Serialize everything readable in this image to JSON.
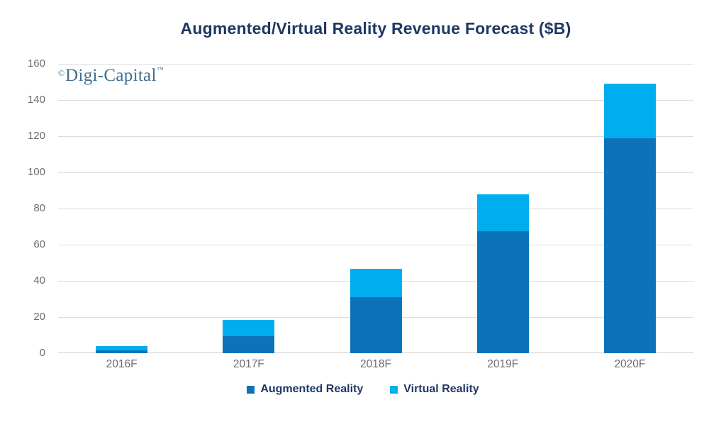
{
  "logo": {
    "copyright_symbol": "©",
    "text": "Digi-Capital",
    "trademark_symbol": "™"
  },
  "colors": {
    "navy_text": "#1f3864",
    "tick_label": "#6f6b6b",
    "gridline": "#dcdcdc",
    "axis_line": "#cfcfcf",
    "logo_text": "#3f7093",
    "augmented_reality_bar": "#0d73b9",
    "virtual_reality_bar": "#00aeef"
  },
  "chart_data": {
    "type": "bar",
    "stacked": true,
    "title": "Augmented/Virtual Reality Revenue Forecast ($B)",
    "xlabel": "",
    "ylabel": "",
    "categories": [
      "2016F",
      "2017F",
      "2018F",
      "2019F",
      "2020F"
    ],
    "series": [
      {
        "name": "Augmented Reality",
        "color": "#0d73b9",
        "values": [
          1.5,
          9.5,
          31,
          67.5,
          119
        ]
      },
      {
        "name": "Virtual Reality",
        "color": "#00aeef",
        "values": [
          2.5,
          9,
          15.5,
          20.5,
          30
        ]
      }
    ],
    "totals": [
      4,
      18.5,
      46.5,
      88,
      149
    ],
    "ylim": [
      0,
      160
    ],
    "yticks": [
      0,
      20,
      40,
      60,
      80,
      100,
      120,
      140,
      160
    ],
    "grid": true,
    "legend_position": "bottom"
  }
}
